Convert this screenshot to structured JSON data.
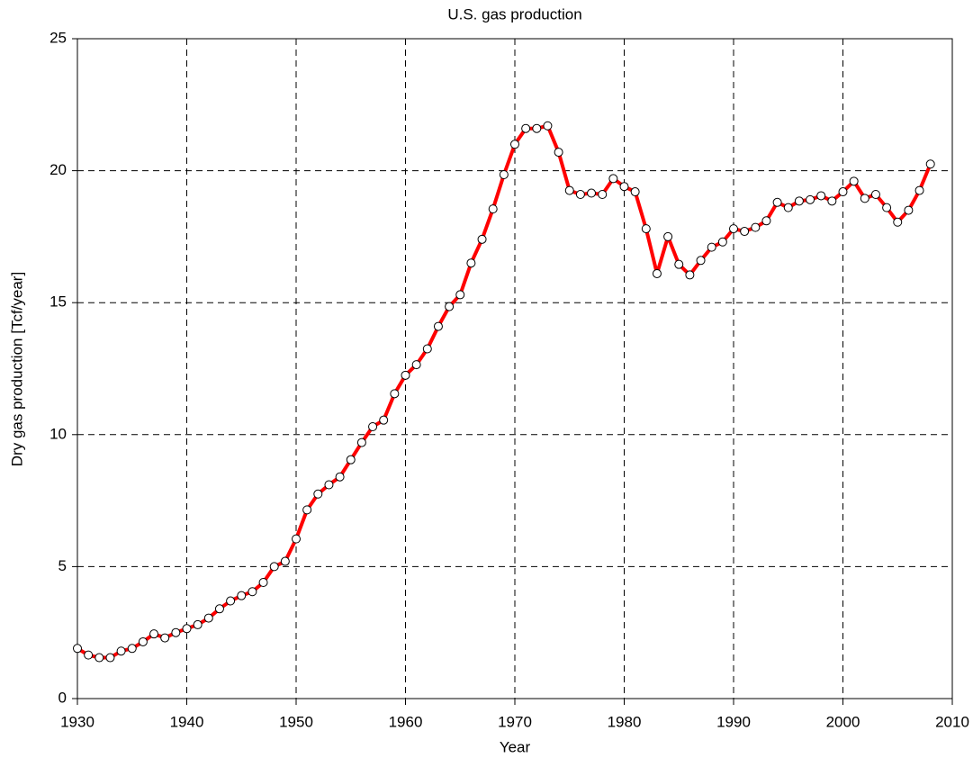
{
  "chart_data": {
    "type": "line",
    "title": "U.S. gas production",
    "x_label": "Year",
    "y_label": "Dry gas production [Tcf/year]",
    "x": [
      1930,
      1931,
      1932,
      1933,
      1934,
      1935,
      1936,
      1937,
      1938,
      1939,
      1940,
      1941,
      1942,
      1943,
      1944,
      1945,
      1946,
      1947,
      1948,
      1949,
      1950,
      1951,
      1952,
      1953,
      1954,
      1955,
      1956,
      1957,
      1958,
      1959,
      1960,
      1961,
      1962,
      1963,
      1964,
      1965,
      1966,
      1967,
      1968,
      1969,
      1970,
      1971,
      1972,
      1973,
      1974,
      1975,
      1976,
      1977,
      1978,
      1979,
      1980,
      1981,
      1982,
      1983,
      1984,
      1985,
      1986,
      1987,
      1988,
      1989,
      1990,
      1991,
      1992,
      1993,
      1994,
      1995,
      1996,
      1997,
      1998,
      1999,
      2000,
      2001,
      2002,
      2003,
      2004,
      2005,
      2006,
      2007,
      2008
    ],
    "values": [
      1.9,
      1.65,
      1.55,
      1.55,
      1.8,
      1.9,
      2.15,
      2.45,
      2.3,
      2.5,
      2.65,
      2.8,
      3.05,
      3.4,
      3.7,
      3.9,
      4.05,
      4.4,
      5.0,
      5.2,
      6.05,
      7.15,
      7.75,
      8.1,
      8.4,
      9.05,
      9.7,
      10.3,
      10.55,
      11.55,
      12.25,
      12.65,
      13.25,
      14.1,
      14.85,
      15.3,
      16.5,
      17.4,
      18.55,
      19.85,
      21.0,
      21.6,
      21.6,
      21.7,
      20.7,
      19.25,
      19.1,
      19.15,
      19.1,
      19.7,
      19.4,
      19.2,
      17.8,
      16.1,
      17.5,
      16.45,
      16.05,
      16.6,
      17.1,
      17.3,
      17.8,
      17.7,
      17.85,
      18.1,
      18.8,
      18.6,
      18.85,
      18.9,
      19.05,
      18.85,
      19.2,
      19.6,
      18.95,
      19.1,
      18.6,
      18.05,
      18.5,
      19.25,
      20.25
    ],
    "color": "#ff0000",
    "xlim": [
      1930,
      2010
    ],
    "xticks": [
      1930,
      1940,
      1950,
      1960,
      1970,
      1980,
      1990,
      2000,
      2010
    ],
    "ylim": [
      0,
      25
    ],
    "yticks": [
      0,
      5,
      10,
      15,
      20,
      25
    ],
    "grid": true
  }
}
